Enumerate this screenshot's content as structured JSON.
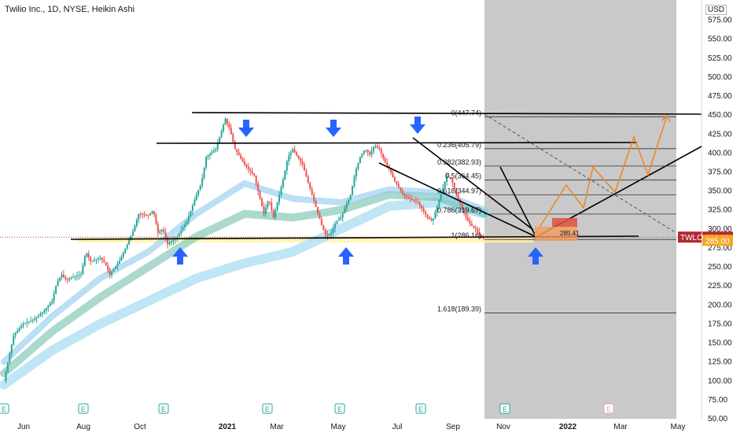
{
  "chart_data": {
    "type": "candlestick",
    "title": "Twilio Inc., 1D, NYSE, Heikin Ashi",
    "currency": "USD",
    "ticker": "TWLO",
    "last_price": "289.29",
    "price_label_2": "285.00",
    "price_marker_3": "285.41",
    "ylim": [
      50,
      587
    ],
    "y_ticks": [
      "575.00",
      "550.00",
      "525.00",
      "500.00",
      "475.00",
      "450.00",
      "425.00",
      "400.00",
      "375.00",
      "350.00",
      "325.00",
      "300.00",
      "275.00",
      "250.00",
      "225.00",
      "200.00",
      "175.00",
      "150.00",
      "125.00",
      "100.00",
      "75.00",
      "50.00"
    ],
    "x_ticks": [
      "Jun",
      "Aug",
      "Oct",
      "2021",
      "Mar",
      "May",
      "Jul",
      "Sep",
      "Nov",
      "2022",
      "Mar",
      "May"
    ],
    "x_ticks_bold": [
      "2021",
      "2022"
    ],
    "fib_levels": [
      {
        "label": "0(447.74)",
        "value": 447.74
      },
      {
        "label": "0.236(405.79)",
        "value": 405.79
      },
      {
        "label": "0.382(382.93)",
        "value": 382.93
      },
      {
        "label": "0.5(364.45)",
        "value": 364.45
      },
      {
        "label": "0.618(344.97)",
        "value": 344.97
      },
      {
        "label": "0.786(319.67)",
        "value": 319.67
      },
      {
        "label": "1(286.16)",
        "value": 286.16
      },
      {
        "label": "1.618(189.39)",
        "value": 189.39
      }
    ],
    "price_path": [
      [
        0,
        100
      ],
      [
        2,
        160
      ],
      [
        4,
        175
      ],
      [
        6,
        180
      ],
      [
        8,
        190
      ],
      [
        10,
        205
      ],
      [
        11,
        230
      ],
      [
        12,
        240
      ],
      [
        13,
        232
      ],
      [
        14,
        236
      ],
      [
        16,
        240
      ],
      [
        17,
        270
      ],
      [
        18,
        258
      ],
      [
        20,
        262
      ],
      [
        21,
        255
      ],
      [
        22,
        240
      ],
      [
        24,
        258
      ],
      [
        26,
        285
      ],
      [
        27,
        300
      ],
      [
        28,
        320
      ],
      [
        30,
        318
      ],
      [
        31,
        325
      ],
      [
        32,
        295
      ],
      [
        33,
        300
      ],
      [
        34,
        280
      ],
      [
        36,
        290
      ],
      [
        38,
        310
      ],
      [
        40,
        345
      ],
      [
        41,
        360
      ],
      [
        42,
        395
      ],
      [
        44,
        405
      ],
      [
        45,
        425
      ],
      [
        46,
        445
      ],
      [
        47,
        430
      ],
      [
        48,
        405
      ],
      [
        50,
        385
      ],
      [
        52,
        370
      ],
      [
        53,
        345
      ],
      [
        54,
        320
      ],
      [
        55,
        340
      ],
      [
        56,
        315
      ],
      [
        57,
        340
      ],
      [
        58,
        365
      ],
      [
        59,
        395
      ],
      [
        60,
        405
      ],
      [
        62,
        385
      ],
      [
        63,
        365
      ],
      [
        64,
        345
      ],
      [
        65,
        325
      ],
      [
        66,
        305
      ],
      [
        67,
        290
      ],
      [
        68,
        295
      ],
      [
        69,
        310
      ],
      [
        70,
        315
      ],
      [
        71,
        330
      ],
      [
        72,
        345
      ],
      [
        73,
        375
      ],
      [
        74,
        395
      ],
      [
        75,
        405
      ],
      [
        76,
        398
      ],
      [
        77,
        410
      ],
      [
        78,
        405
      ],
      [
        79,
        390
      ],
      [
        80,
        380
      ],
      [
        81,
        365
      ],
      [
        82,
        355
      ],
      [
        83,
        345
      ],
      [
        84,
        340
      ],
      [
        86,
        335
      ],
      [
        87,
        325
      ],
      [
        88,
        315
      ],
      [
        89,
        310
      ],
      [
        90,
        330
      ],
      [
        91,
        350
      ],
      [
        92,
        370
      ],
      [
        93,
        365
      ],
      [
        94,
        345
      ],
      [
        95,
        330
      ],
      [
        96,
        315
      ],
      [
        97,
        305
      ],
      [
        98,
        300
      ],
      [
        99,
        290
      ],
      [
        100,
        286
      ]
    ],
    "ema_bands": [
      {
        "color": "#b7e3f4",
        "opacity": 0.9,
        "points": [
          [
            0,
            95
          ],
          [
            10,
            140
          ],
          [
            20,
            175
          ],
          [
            30,
            205
          ],
          [
            40,
            235
          ],
          [
            50,
            255
          ],
          [
            60,
            270
          ],
          [
            70,
            300
          ],
          [
            80,
            330
          ],
          [
            90,
            335
          ],
          [
            100,
            320
          ]
        ]
      },
      {
        "color": "#66b9a4",
        "opacity": 0.55,
        "points": [
          [
            0,
            110
          ],
          [
            10,
            165
          ],
          [
            20,
            210
          ],
          [
            30,
            250
          ],
          [
            40,
            290
          ],
          [
            50,
            320
          ],
          [
            60,
            315
          ],
          [
            70,
            325
          ],
          [
            80,
            345
          ],
          [
            90,
            342
          ],
          [
            100,
            320
          ]
        ]
      },
      {
        "color": "#8ec9ec",
        "opacity": 0.6,
        "points": [
          [
            0,
            125
          ],
          [
            10,
            185
          ],
          [
            20,
            235
          ],
          [
            30,
            270
          ],
          [
            40,
            320
          ],
          [
            50,
            360
          ],
          [
            60,
            340
          ],
          [
            70,
            335
          ],
          [
            80,
            352
          ],
          [
            90,
            348
          ],
          [
            100,
            325
          ]
        ]
      }
    ]
  }
}
